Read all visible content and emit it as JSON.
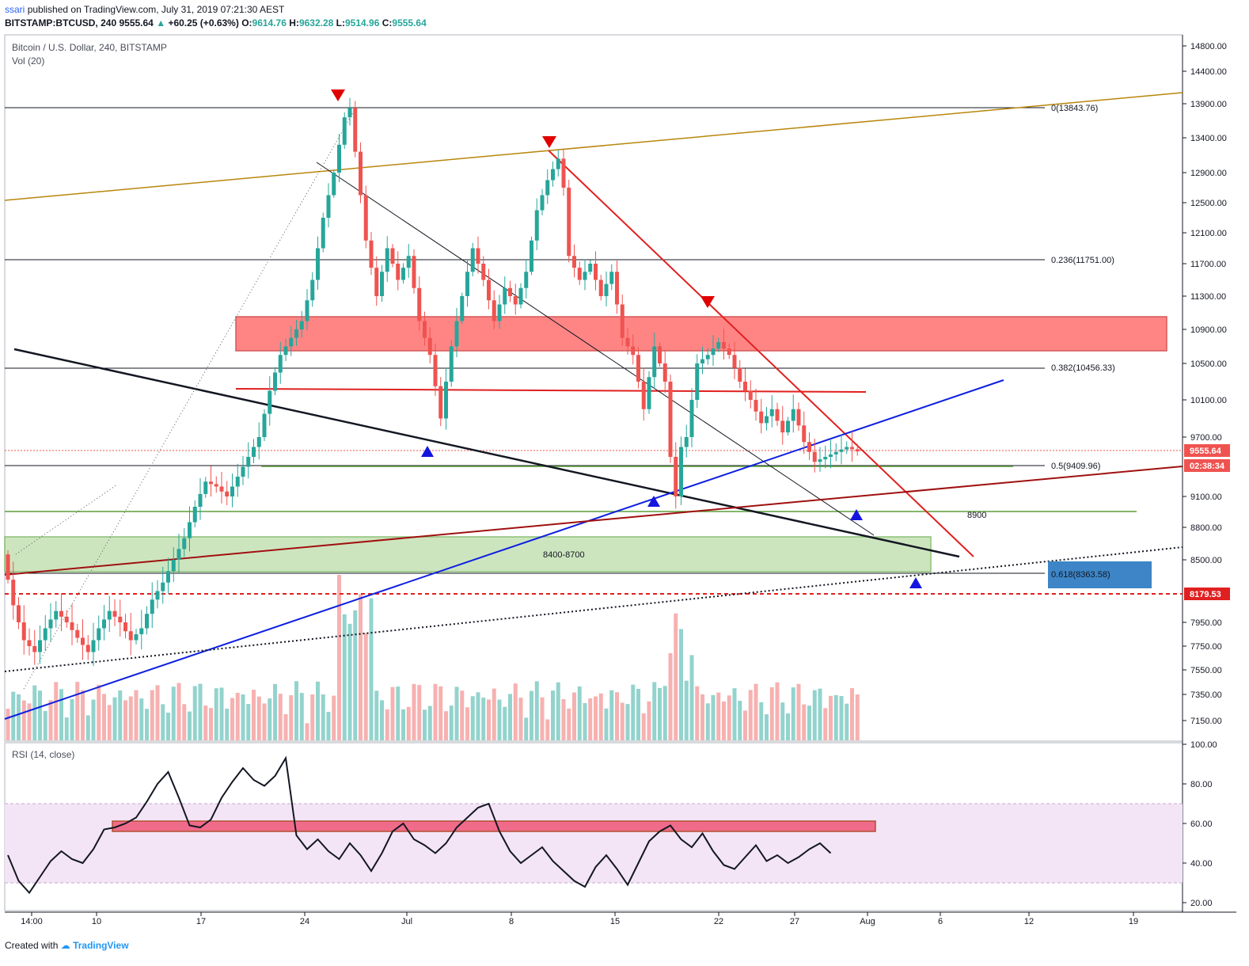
{
  "header": {
    "publisher_user": "ssari",
    "publisher_text": "published on TradingView.com, July 31, 2019 07:21:30 AEST",
    "symbol": "BITSTAMP:BTCUSD, 240",
    "last": "9555.64",
    "change": "+60.25 (+0.63%)",
    "open_label": "O:",
    "open": "9614.76",
    "high_label": "H:",
    "high": "9632.28",
    "low_label": "L:",
    "low": "9514.96",
    "close_label": "C:",
    "close": "9555.64"
  },
  "pane_labels": {
    "title": "Bitcoin / U.S. Dollar, 240, BITSTAMP",
    "volume": "Vol (20)",
    "rsi": "RSI (14, close)"
  },
  "footer": {
    "created_with": "Created with",
    "brand": "TradingView"
  },
  "colors": {
    "up": "#26a69a",
    "down": "#ef5350",
    "rsi_band": "#e1bee7",
    "blue_box": "#3d85c6"
  },
  "chart_data": {
    "type": "candlestick",
    "price_axis": {
      "ticks": [
        "14800.00",
        "14400.00",
        "13900.00",
        "13400.00",
        "12900.00",
        "12500.00",
        "12100.00",
        "11700.00",
        "11300.00",
        "10900.00",
        "10500.00",
        "10100.00",
        "9700.00",
        "9100.00",
        "8800.00",
        "8500.00",
        "7950.00",
        "7750.00",
        "7550.00",
        "7350.00",
        "7150.00"
      ],
      "ylim": [
        7000,
        15000
      ]
    },
    "rsi_axis": {
      "ticks": [
        "100.00",
        "80.00",
        "60.00",
        "40.00",
        "20.00"
      ],
      "ylim": [
        15,
        100
      ],
      "band": [
        30,
        70
      ]
    },
    "time_axis": [
      "14:00",
      "10",
      "17",
      "24",
      "Jul",
      "8",
      "15",
      "22",
      "27",
      "Aug",
      "6",
      "12",
      "19"
    ],
    "last_price_label": "9555.64",
    "countdown_label": "02:38:34",
    "red_level_label": "8179.53",
    "fib_levels": [
      {
        "label": "0(13843.76)",
        "value": 13843.76
      },
      {
        "label": "0.236(11751.00)",
        "value": 11751.0
      },
      {
        "label": "0.382(10456.33)",
        "value": 10456.33
      },
      {
        "label": "0.5(9409.96)",
        "value": 9409.96
      },
      {
        "label": "0.618(8363.58)",
        "value": 8363.58
      }
    ],
    "zone_labels": {
      "support_zone": "8400-8700",
      "level_8900": "8900"
    },
    "price_path": [
      [
        0,
        8550
      ],
      [
        2,
        8100
      ],
      [
        4,
        7800
      ],
      [
        6,
        7700
      ],
      [
        8,
        7900
      ],
      [
        10,
        8050
      ],
      [
        12,
        7950
      ],
      [
        14,
        7820
      ],
      [
        16,
        7700
      ],
      [
        18,
        7900
      ],
      [
        20,
        8050
      ],
      [
        22,
        7950
      ],
      [
        24,
        7800
      ],
      [
        26,
        7900
      ],
      [
        28,
        8150
      ],
      [
        30,
        8300
      ],
      [
        32,
        8500
      ],
      [
        34,
        8700
      ],
      [
        36,
        9000
      ],
      [
        38,
        9250
      ],
      [
        40,
        9200
      ],
      [
        42,
        9100
      ],
      [
        44,
        9300
      ],
      [
        46,
        9500
      ],
      [
        48,
        9700
      ],
      [
        50,
        10200
      ],
      [
        52,
        10600
      ],
      [
        54,
        10800
      ],
      [
        56,
        11000
      ],
      [
        58,
        11500
      ],
      [
        60,
        12300
      ],
      [
        62,
        12900
      ],
      [
        64,
        13700
      ],
      [
        65,
        13840
      ],
      [
        66,
        13200
      ],
      [
        68,
        12000
      ],
      [
        70,
        11300
      ],
      [
        72,
        11900
      ],
      [
        74,
        11500
      ],
      [
        76,
        11800
      ],
      [
        78,
        11000
      ],
      [
        80,
        10600
      ],
      [
        82,
        9900
      ],
      [
        84,
        10700
      ],
      [
        86,
        11300
      ],
      [
        88,
        11900
      ],
      [
        90,
        11500
      ],
      [
        92,
        11000
      ],
      [
        94,
        11400
      ],
      [
        96,
        11200
      ],
      [
        98,
        11600
      ],
      [
        100,
        12400
      ],
      [
        102,
        12800
      ],
      [
        104,
        13100
      ],
      [
        105,
        12700
      ],
      [
        106,
        11800
      ],
      [
        108,
        11500
      ],
      [
        110,
        11700
      ],
      [
        112,
        11300
      ],
      [
        114,
        11600
      ],
      [
        116,
        10800
      ],
      [
        118,
        10600
      ],
      [
        120,
        10000
      ],
      [
        122,
        10700
      ],
      [
        124,
        10300
      ],
      [
        125,
        9500
      ],
      [
        126,
        9100
      ],
      [
        127,
        9600
      ],
      [
        128,
        9700
      ],
      [
        130,
        10500
      ],
      [
        132,
        10600
      ],
      [
        134,
        10750
      ],
      [
        136,
        10600
      ],
      [
        138,
        10300
      ],
      [
        140,
        10100
      ],
      [
        142,
        9850
      ],
      [
        144,
        10000
      ],
      [
        146,
        9750
      ],
      [
        148,
        10000
      ],
      [
        150,
        9650
      ],
      [
        152,
        9450
      ],
      [
        154,
        9500
      ],
      [
        156,
        9550
      ],
      [
        158,
        9600
      ],
      [
        160,
        9555
      ]
    ],
    "rsi_path": [
      [
        0,
        44
      ],
      [
        2,
        31
      ],
      [
        4,
        25
      ],
      [
        6,
        33
      ],
      [
        8,
        41
      ],
      [
        10,
        46
      ],
      [
        12,
        42
      ],
      [
        14,
        40
      ],
      [
        16,
        47
      ],
      [
        18,
        57
      ],
      [
        20,
        58
      ],
      [
        22,
        60
      ],
      [
        24,
        63
      ],
      [
        26,
        71
      ],
      [
        28,
        80
      ],
      [
        30,
        86
      ],
      [
        32,
        73
      ],
      [
        34,
        59
      ],
      [
        36,
        58
      ],
      [
        38,
        62
      ],
      [
        40,
        73
      ],
      [
        42,
        81
      ],
      [
        44,
        88
      ],
      [
        46,
        82
      ],
      [
        48,
        79
      ],
      [
        50,
        84
      ],
      [
        52,
        93
      ],
      [
        54,
        54
      ],
      [
        56,
        47
      ],
      [
        58,
        52
      ],
      [
        60,
        46
      ],
      [
        62,
        42
      ],
      [
        64,
        50
      ],
      [
        66,
        44
      ],
      [
        68,
        36
      ],
      [
        70,
        45
      ],
      [
        72,
        56
      ],
      [
        74,
        60
      ],
      [
        76,
        52
      ],
      [
        78,
        49
      ],
      [
        80,
        45
      ],
      [
        82,
        50
      ],
      [
        84,
        58
      ],
      [
        86,
        63
      ],
      [
        88,
        68
      ],
      [
        90,
        70
      ],
      [
        92,
        56
      ],
      [
        94,
        46
      ],
      [
        96,
        40
      ],
      [
        98,
        44
      ],
      [
        100,
        48
      ],
      [
        102,
        41
      ],
      [
        104,
        36
      ],
      [
        106,
        31
      ],
      [
        108,
        28
      ],
      [
        110,
        38
      ],
      [
        112,
        44
      ],
      [
        114,
        37
      ],
      [
        116,
        29
      ],
      [
        118,
        40
      ],
      [
        120,
        51
      ],
      [
        122,
        56
      ],
      [
        124,
        59
      ],
      [
        126,
        52
      ],
      [
        128,
        48
      ],
      [
        130,
        55
      ],
      [
        132,
        46
      ],
      [
        134,
        39
      ],
      [
        136,
        37
      ],
      [
        138,
        43
      ],
      [
        140,
        49
      ],
      [
        142,
        41
      ],
      [
        144,
        44
      ],
      [
        146,
        40
      ],
      [
        148,
        43
      ],
      [
        150,
        47
      ],
      [
        152,
        50
      ],
      [
        154,
        45
      ]
    ]
  }
}
